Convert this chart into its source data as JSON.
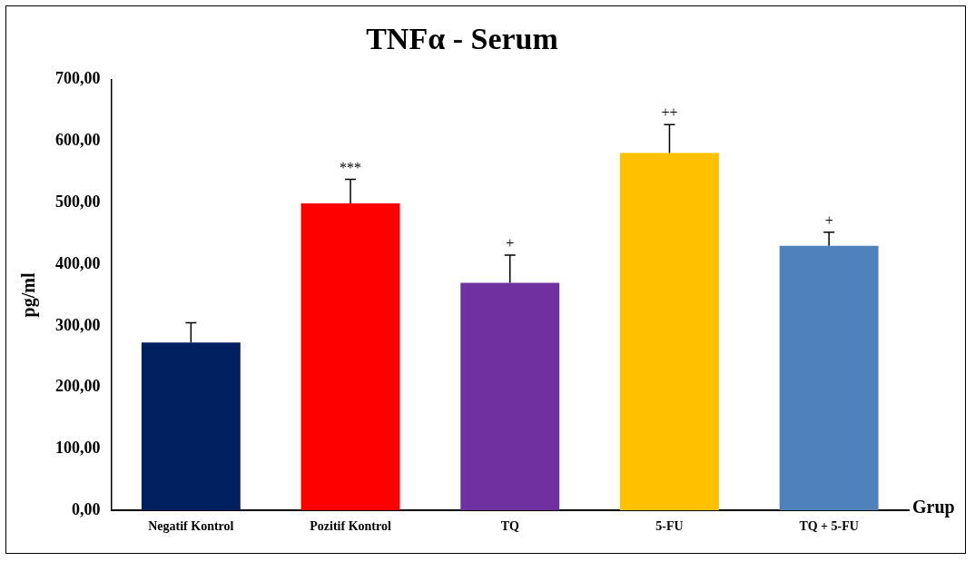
{
  "chart_data": {
    "type": "bar",
    "title": "TNFα - Serum",
    "xlabel": "Grup",
    "ylabel": "pg/ml",
    "categories": [
      "Negatif Kontrol",
      "Pozitif Kontrol",
      "TQ",
      "5-FU",
      "TQ + 5-FU"
    ],
    "values": [
      273,
      499,
      370,
      581,
      430
    ],
    "colors": [
      "#002060",
      "#ff0000",
      "#7030a0",
      "#ffc000",
      "#4f81bd"
    ],
    "errors": [
      [
        273,
        305
      ],
      [
        499,
        538
      ],
      [
        370,
        415
      ],
      [
        581,
        627
      ],
      [
        430,
        452
      ]
    ],
    "ylim": [
      0,
      700
    ],
    "yticks": [
      {
        "value": 0,
        "label": "0,00"
      },
      {
        "value": 100,
        "label": "100,00"
      },
      {
        "value": 200,
        "label": "200,00"
      },
      {
        "value": 300,
        "label": "300,00"
      },
      {
        "value": 400,
        "label": "400,00"
      },
      {
        "value": 500,
        "label": "500,00"
      },
      {
        "value": 600,
        "label": "600,00"
      },
      {
        "value": 700,
        "label": "700,00"
      }
    ],
    "grid": false,
    "legend": false,
    "annotations": [
      {
        "text": "***",
        "x": "Pozitif Kontrol",
        "y": 538
      },
      {
        "text": "+",
        "x": "TQ",
        "y": 415
      },
      {
        "text": "++",
        "x": "5-FU",
        "y": 627
      },
      {
        "text": "+",
        "x": "TQ + 5-FU",
        "y": 452
      }
    ]
  }
}
